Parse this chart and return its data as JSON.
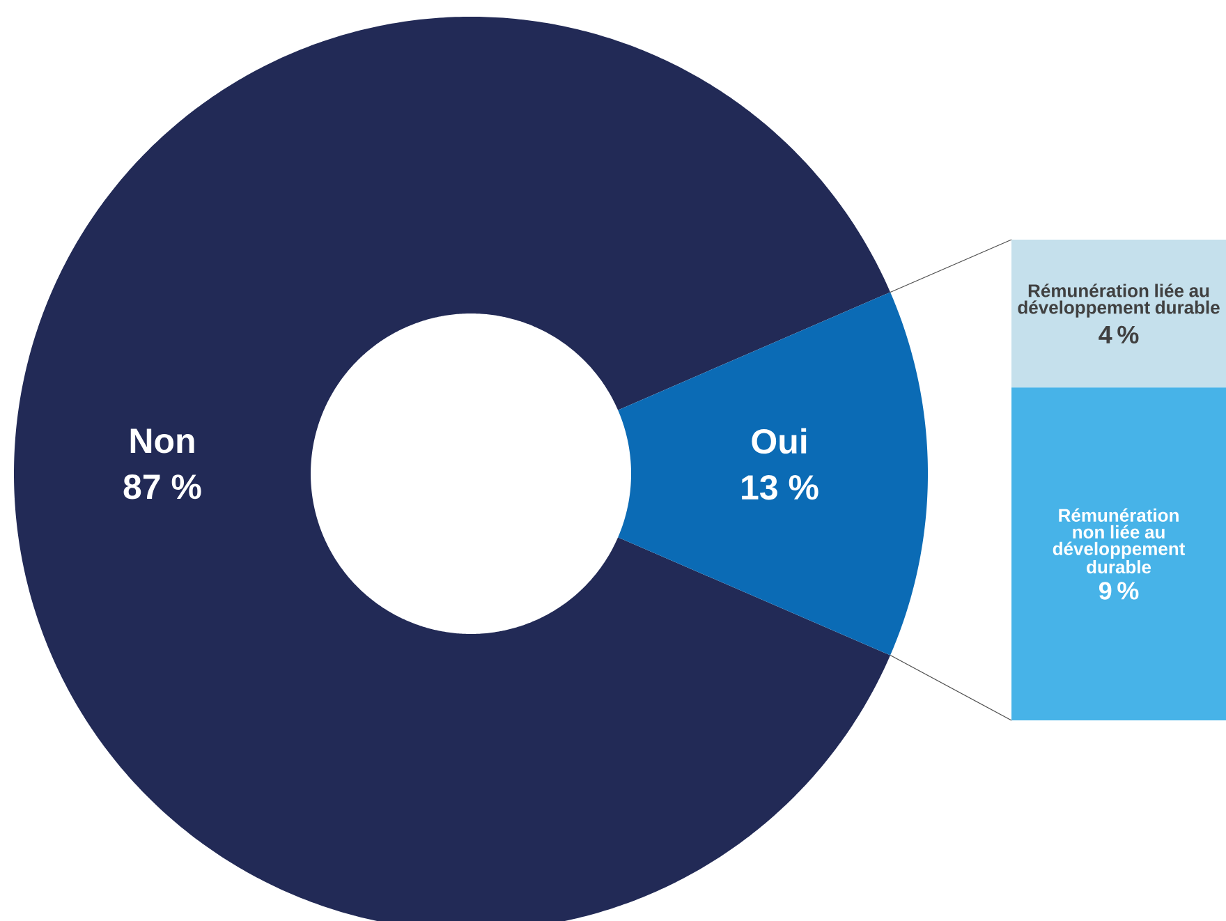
{
  "chart_data": [
    {
      "type": "donut",
      "categories": [
        "Non",
        "Oui"
      ],
      "values": [
        87,
        13
      ],
      "colors": [
        "#222a56",
        "#0b6bb5"
      ],
      "value_labels": [
        "87 %",
        "13 %"
      ]
    },
    {
      "type": "bar",
      "stacked": true,
      "categories": [
        null
      ],
      "ylim": [
        0,
        13
      ],
      "tick_labels": false,
      "series": [
        {
          "name": "Rémunération non liée au développement durable",
          "color": "#47b3e8",
          "values": [
            9
          ],
          "value_labels": [
            "9 %"
          ]
        },
        {
          "name": "Rémunération liée au développement durable",
          "color": "#c5e0ec",
          "values": [
            4
          ],
          "value_labels": [
            "4 %"
          ]
        }
      ]
    }
  ]
}
